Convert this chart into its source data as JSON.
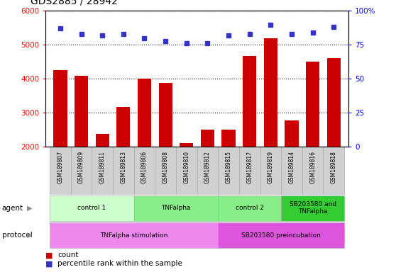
{
  "title": "GDS2885 / 28942",
  "samples": [
    "GSM189807",
    "GSM189809",
    "GSM189811",
    "GSM189813",
    "GSM189806",
    "GSM189808",
    "GSM189810",
    "GSM189812",
    "GSM189815",
    "GSM189817",
    "GSM189819",
    "GSM189814",
    "GSM189816",
    "GSM189818"
  ],
  "counts": [
    4250,
    4100,
    2380,
    3180,
    4000,
    3880,
    2120,
    2500,
    2500,
    4680,
    5200,
    2780,
    4500,
    4620
  ],
  "percentile_ranks": [
    87,
    83,
    82,
    83,
    80,
    78,
    76,
    76,
    82,
    83,
    90,
    83,
    84,
    88
  ],
  "ylim_left": [
    2000,
    6000
  ],
  "ylim_right": [
    0,
    100
  ],
  "yticks_left": [
    2000,
    3000,
    4000,
    5000,
    6000
  ],
  "yticks_right": [
    0,
    25,
    50,
    75,
    100
  ],
  "bar_color": "#cc0000",
  "dot_color": "#3333cc",
  "agent_groups": [
    {
      "label": "control 1",
      "start": 0,
      "end": 4,
      "color": "#ccffcc"
    },
    {
      "label": "TNFalpha",
      "start": 4,
      "end": 8,
      "color": "#88ee88"
    },
    {
      "label": "control 2",
      "start": 8,
      "end": 11,
      "color": "#88ee88"
    },
    {
      "label": "SB203580 and\nTNFalpha",
      "start": 11,
      "end": 14,
      "color": "#33cc33"
    }
  ],
  "protocol_groups": [
    {
      "label": "TNFalpha stimulation",
      "start": 0,
      "end": 8,
      "color": "#ee88ee"
    },
    {
      "label": "SB203580 preincubation",
      "start": 8,
      "end": 14,
      "color": "#dd55dd"
    }
  ],
  "legend_items": [
    {
      "color": "#cc0000",
      "label": "count"
    },
    {
      "color": "#3333cc",
      "label": "percentile rank within the sample"
    }
  ],
  "label_box_color": "#d0d0d0",
  "label_box_edge": "#aaaaaa",
  "grid_line_color": "black",
  "grid_linestyle": ":",
  "grid_linewidth": 0.8
}
